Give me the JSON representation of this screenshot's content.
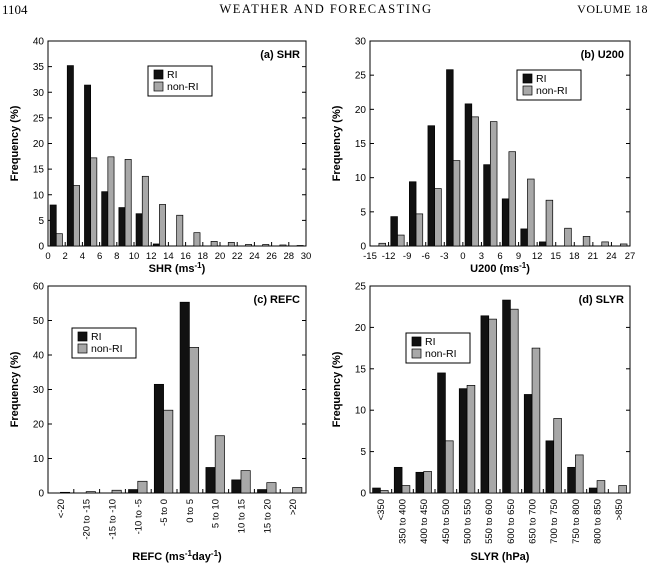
{
  "page_header": {
    "page_number": "1104",
    "journal": "WEATHER AND FORECASTING",
    "volume": "VOLUME 18"
  },
  "colors": {
    "ri": "#111111",
    "non_ri": "#a8a8a8"
  },
  "chart_data": [
    {
      "id": "a",
      "type": "bar",
      "panel_label": "(a) SHR",
      "xlabel": "SHR (ms",
      "xlabel_sup": "-1",
      "xlabel_end": ")",
      "ylabel": "Frequency (%)",
      "ylim": [
        0,
        40
      ],
      "ytick_step": 5,
      "x_ticks": [
        "0",
        "2",
        "4",
        "6",
        "8",
        "10",
        "12",
        "14",
        "16",
        "18",
        "20",
        "22",
        "24",
        "26",
        "28",
        "30"
      ],
      "categories": [
        "0-2",
        "2-4",
        "4-6",
        "6-8",
        "8-10",
        "10-12",
        "12-14",
        "14-16",
        "16-18",
        "18-20",
        "20-22",
        "22-24",
        "24-26",
        "26-28",
        "28-30"
      ],
      "series": [
        {
          "name": "RI",
          "values": [
            8.0,
            35.2,
            31.4,
            10.6,
            7.5,
            6.3,
            0.4,
            0,
            0,
            0,
            0,
            0,
            0,
            0,
            0
          ]
        },
        {
          "name": "non-RI",
          "values": [
            2.4,
            11.8,
            17.2,
            17.4,
            16.9,
            13.6,
            8.1,
            6.0,
            2.6,
            0.9,
            0.7,
            0.3,
            0.3,
            0.2,
            0.1
          ]
        }
      ]
    },
    {
      "id": "b",
      "type": "bar",
      "panel_label": "(b) U200",
      "xlabel": "U200 (ms",
      "xlabel_sup": "-1",
      "xlabel_end": ")",
      "ylabel": "Frequency (%)",
      "ylim": [
        0,
        30
      ],
      "ytick_step": 5,
      "x_ticks": [
        "-15",
        "-12",
        "-9",
        "-6",
        "-3",
        "0",
        "3",
        "6",
        "9",
        "12",
        "15",
        "18",
        "21",
        "24",
        "27"
      ],
      "categories": [
        "-15 to -12",
        "-12 to -9",
        "-9 to -6",
        "-6 to -3",
        "-3 to 0",
        "0 to 3",
        "3 to 6",
        "6 to 9",
        "9 to 12",
        "12 to 15",
        "15 to 18",
        "18 to 21",
        "21 to 24",
        "24 to 27"
      ],
      "series": [
        {
          "name": "RI",
          "values": [
            0,
            4.3,
            9.4,
            17.6,
            25.8,
            20.8,
            11.9,
            6.9,
            2.5,
            0.6,
            0,
            0,
            0,
            0
          ]
        },
        {
          "name": "non-RI",
          "values": [
            0.4,
            1.6,
            4.7,
            8.4,
            12.5,
            18.9,
            18.2,
            13.8,
            9.8,
            6.7,
            2.6,
            1.4,
            0.6,
            0.3
          ]
        }
      ]
    },
    {
      "id": "c",
      "type": "bar",
      "panel_label": "(c) REFC",
      "xlabel": "REFC (ms",
      "xlabel_sup": "-1",
      "xlabel_end": "day",
      "xlabel_sup2": "-1",
      "xlabel_end2": ")",
      "ylabel": "Frequency (%)",
      "ylim": [
        0,
        60
      ],
      "ytick_step": 10,
      "categories": [
        "<-20",
        "-20 to -15",
        "-15 to -10",
        "-10 to -5",
        "-5 to 0",
        "0 to 5",
        "5 to 10",
        "10 to 15",
        "15 to 20",
        ">20"
      ],
      "series": [
        {
          "name": "RI",
          "values": [
            0,
            0,
            0,
            1.0,
            31.5,
            55.3,
            7.4,
            3.8,
            1.0,
            0
          ]
        },
        {
          "name": "non-RI",
          "values": [
            0.2,
            0.4,
            0.8,
            3.4,
            24.0,
            42.2,
            16.6,
            6.5,
            3.0,
            1.6
          ]
        }
      ]
    },
    {
      "id": "d",
      "type": "bar",
      "panel_label": "(d) SLYR",
      "xlabel": "SLYR (hPa)",
      "ylabel": "Frequency (%)",
      "ylim": [
        0,
        25
      ],
      "ytick_step": 5,
      "categories": [
        "<350",
        "350 to 400",
        "400 to 450",
        "450 to 500",
        "500 to 550",
        "550 to 600",
        "600 to 650",
        "650 to 700",
        "700 to 750",
        "750 to 800",
        "800 to 850",
        ">850"
      ],
      "series": [
        {
          "name": "RI",
          "values": [
            0.6,
            3.1,
            2.5,
            14.5,
            12.6,
            21.4,
            23.3,
            11.9,
            6.3,
            3.1,
            0.6,
            0
          ]
        },
        {
          "name": "non-RI",
          "values": [
            0.3,
            0.9,
            2.6,
            6.3,
            13.0,
            21.0,
            22.2,
            17.5,
            9.0,
            4.6,
            1.5,
            0.9
          ]
        }
      ]
    }
  ]
}
